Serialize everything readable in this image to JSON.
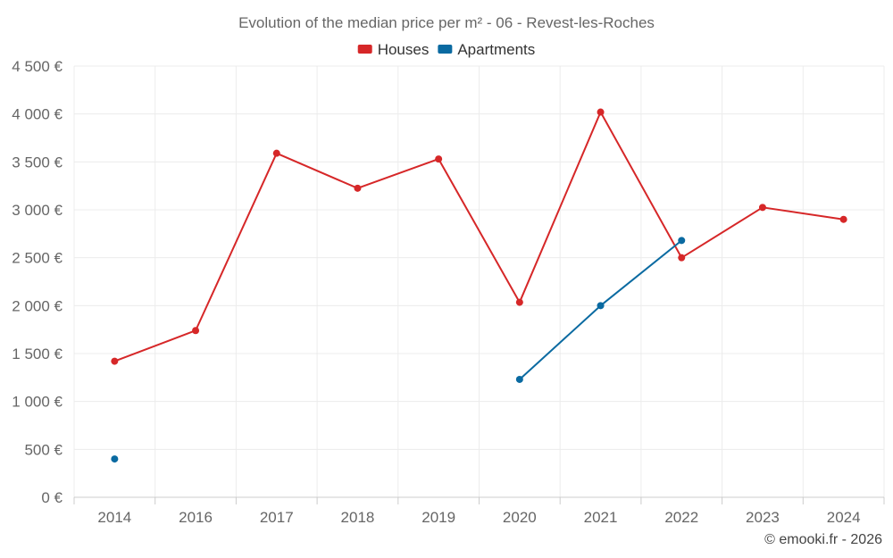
{
  "chart_data": {
    "type": "line",
    "title": "Evolution of the median price per m² - 06 - Revest-les-Roches",
    "categories": [
      "2014",
      "2016",
      "2017",
      "2018",
      "2019",
      "2020",
      "2021",
      "2022",
      "2023",
      "2024"
    ],
    "series": [
      {
        "name": "Houses",
        "color": "#d62728",
        "values": [
          1420,
          1740,
          3590,
          3225,
          3530,
          2035,
          4020,
          2500,
          3025,
          2900
        ]
      },
      {
        "name": "Apartments",
        "color": "#0a6aa1",
        "values": [
          400,
          null,
          null,
          null,
          null,
          1230,
          2000,
          2680,
          null,
          null
        ]
      }
    ],
    "ylim": [
      0,
      4500
    ],
    "yticks": [
      0,
      500,
      1000,
      1500,
      2000,
      2500,
      3000,
      3500,
      4000,
      4500
    ],
    "ytick_labels": [
      "0 €",
      "500 €",
      "1 000 €",
      "1 500 €",
      "2 000 €",
      "2 500 €",
      "3 000 €",
      "3 500 €",
      "4 000 €",
      "4 500 €"
    ],
    "legend_position": "top-center",
    "grid": true,
    "xlabel": "",
    "ylabel": ""
  },
  "credit": "© emooki.fr - 2026"
}
